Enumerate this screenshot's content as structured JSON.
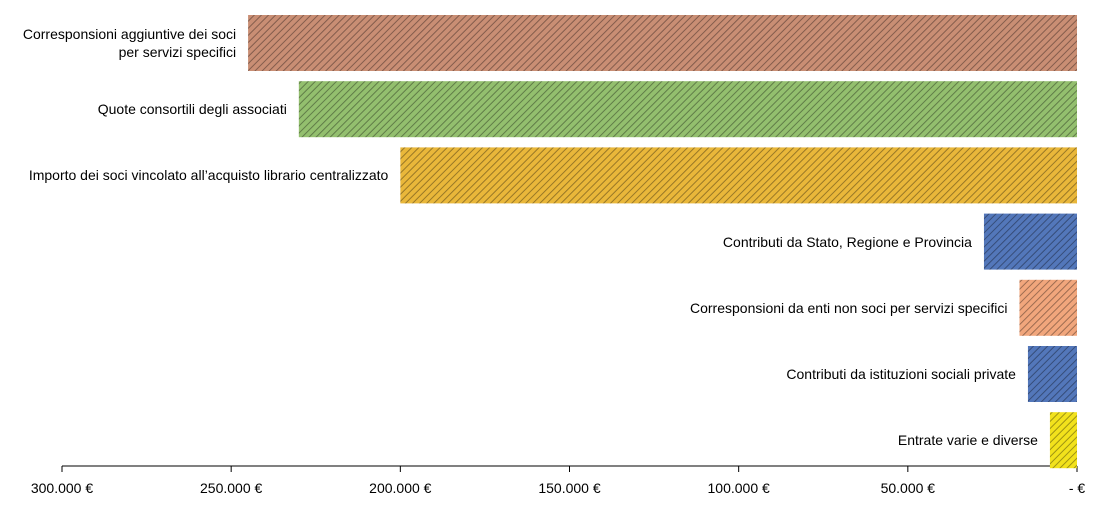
{
  "chart_data": {
    "type": "barh",
    "categories": [
      "Corresponsioni aggiuntive dei soci per servizi specifici",
      "Quote consortili degli associati",
      "Importo dei soci vincolato all’acquisto librario centralizzato",
      "Contributi da Stato, Regione e Provincia",
      "Corresponsioni da enti non soci per servizi specifici",
      "Contributi da istituzioni sociali private",
      "Entrate varie e diverse"
    ],
    "values": [
      245000,
      230000,
      200000,
      27500,
      17000,
      14500,
      8000
    ],
    "colors": [
      "#c98e74",
      "#93bf6e",
      "#e9b73a",
      "#5377ba",
      "#f1a67c",
      "#5377ba",
      "#f2e21c"
    ],
    "xlim": [
      300000,
      0
    ],
    "xticks": [
      {
        "value": 300000,
        "label": "300.000 €"
      },
      {
        "value": 250000,
        "label": "250.000 €"
      },
      {
        "value": 200000,
        "label": "200.000 €"
      },
      {
        "value": 150000,
        "label": "150.000 €"
      },
      {
        "value": 100000,
        "label": "100.000 €"
      },
      {
        "value": 50000,
        "label": "50.000 €"
      },
      {
        "value": 0,
        "label": "- €"
      }
    ]
  }
}
